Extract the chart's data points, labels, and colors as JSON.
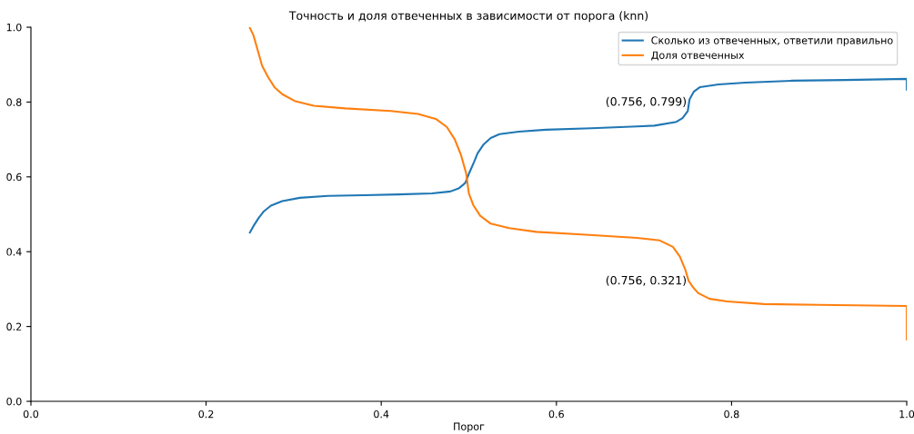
{
  "chart_data": {
    "type": "line",
    "title": "Точность и доля отвеченных в зависимости от порога (knn)",
    "xlabel": "Порог",
    "xlim": [
      0.0,
      1.0
    ],
    "xticks": [
      {
        "value": 0.0,
        "label": "0.0"
      },
      0.2,
      0.4,
      0.6,
      0.8,
      {
        "value": 1.0,
        "label": "1.0"
      }
    ],
    "ylim": [
      0.0,
      1.0
    ],
    "yticks": [
      {
        "value": 0.0,
        "label": "0.0"
      },
      0.2,
      0.4,
      0.6,
      0.8,
      {
        "value": 1.0,
        "label": "1.0"
      }
    ],
    "grid": false,
    "legend": "top right",
    "marker": "none",
    "line_style": "solid",
    "series": [
      {
        "name": "Сколько из отвеченных, ответили правильно",
        "color": "#1f77b4",
        "x": [
          0.25,
          0.254,
          0.26,
          0.266,
          0.274,
          0.287,
          0.307,
          0.339,
          0.38,
          0.42,
          0.458,
          0.479,
          0.489,
          0.496,
          0.5,
          0.506,
          0.51,
          0.517,
          0.525,
          0.535,
          0.557,
          0.588,
          0.64,
          0.692,
          0.712,
          0.737,
          0.744,
          0.75,
          0.752,
          0.757,
          0.764,
          0.785,
          0.816,
          0.868,
          0.93,
          1.0,
          1.0
        ],
        "values": [
          0.451,
          0.468,
          0.49,
          0.508,
          0.523,
          0.535,
          0.544,
          0.549,
          0.551,
          0.553,
          0.556,
          0.561,
          0.57,
          0.584,
          0.608,
          0.64,
          0.663,
          0.687,
          0.704,
          0.714,
          0.721,
          0.726,
          0.73,
          0.735,
          0.737,
          0.747,
          0.757,
          0.776,
          0.807,
          0.828,
          0.84,
          0.847,
          0.852,
          0.857,
          0.859,
          0.862,
          0.833
        ]
      },
      {
        "name": "Доля отвеченных",
        "color": "#ff7f0e",
        "x": [
          0.25,
          0.254,
          0.259,
          0.264,
          0.271,
          0.278,
          0.287,
          0.302,
          0.323,
          0.359,
          0.411,
          0.442,
          0.463,
          0.475,
          0.484,
          0.491,
          0.497,
          0.5,
          0.505,
          0.513,
          0.525,
          0.546,
          0.577,
          0.629,
          0.692,
          0.718,
          0.733,
          0.741,
          0.747,
          0.751,
          0.756,
          0.762,
          0.775,
          0.795,
          0.837,
          0.899,
          1.0,
          1.0
        ],
        "values": [
          0.998,
          0.979,
          0.938,
          0.897,
          0.866,
          0.84,
          0.821,
          0.802,
          0.79,
          0.783,
          0.776,
          0.768,
          0.754,
          0.733,
          0.7,
          0.659,
          0.609,
          0.556,
          0.525,
          0.496,
          0.475,
          0.463,
          0.453,
          0.446,
          0.437,
          0.43,
          0.413,
          0.387,
          0.353,
          0.322,
          0.305,
          0.289,
          0.274,
          0.267,
          0.26,
          0.258,
          0.255,
          0.165
        ]
      }
    ],
    "annotations": [
      {
        "text": "(0.756, 0.799)",
        "x": 0.756,
        "y": 0.799
      },
      {
        "text": "(0.756, 0.321)",
        "x": 0.756,
        "y": 0.321
      }
    ]
  }
}
